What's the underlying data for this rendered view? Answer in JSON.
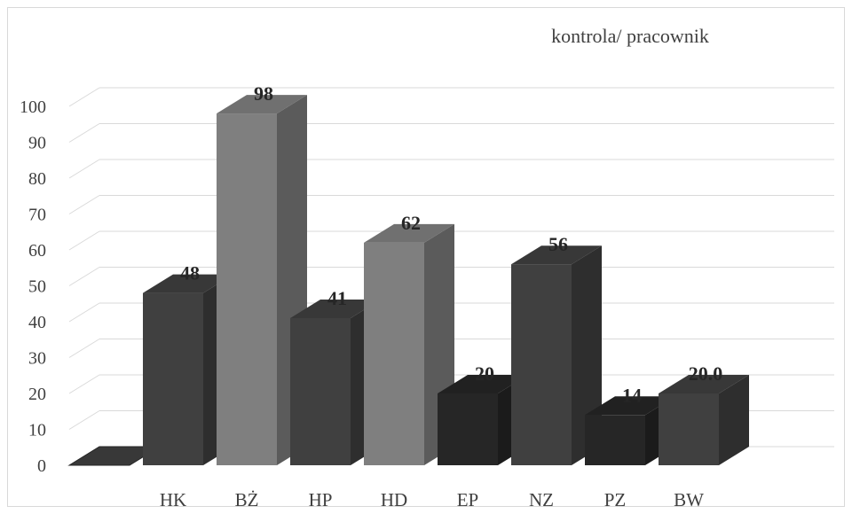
{
  "chart_data": {
    "type": "bar",
    "title": "kontrola/ pracownik",
    "xlabel": "",
    "ylabel": "",
    "ylim": [
      0,
      100
    ],
    "yticks": [
      "0",
      "10",
      "20",
      "30",
      "40",
      "50",
      "60",
      "70",
      "80",
      "90",
      "100"
    ],
    "categories": [
      "",
      "HK",
      "BŻ",
      "HP",
      "HD",
      "EP",
      "NZ",
      "PZ",
      "BW"
    ],
    "values": [
      0,
      48,
      98,
      41,
      62,
      20,
      56,
      14,
      20.0
    ],
    "data_labels": [
      "",
      "48",
      "98",
      "41",
      "62",
      "20",
      "56",
      "14",
      "20.0"
    ],
    "bar_colors": [
      "#404040",
      "#404040",
      "#7f7f7f",
      "#404040",
      "#7f7f7f",
      "#262626",
      "#404040",
      "#262626",
      "#404040"
    ],
    "grid": true,
    "legend": "none",
    "style": "3d-column"
  }
}
